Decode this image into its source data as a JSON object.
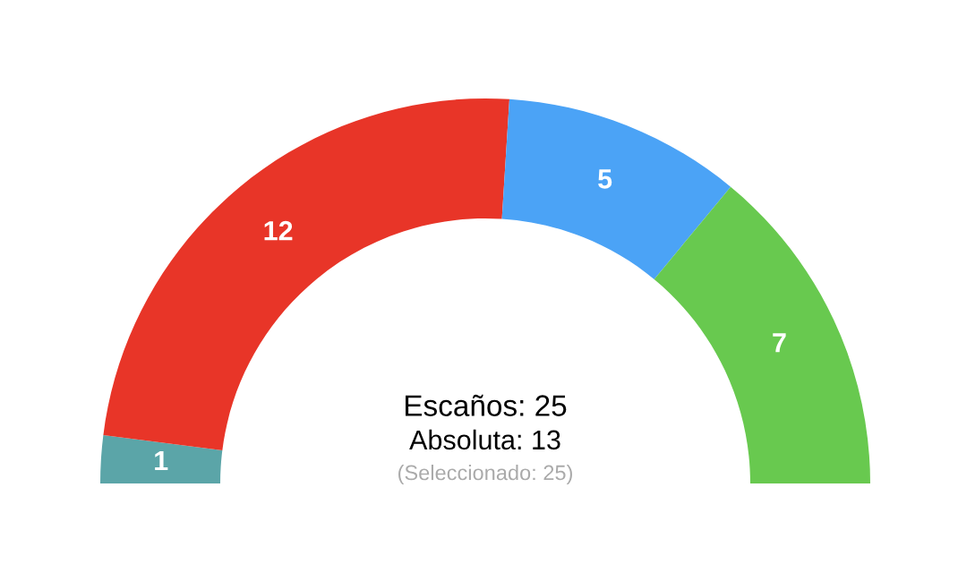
{
  "chart_data": {
    "type": "donut",
    "categories": [
      null,
      null,
      null,
      null
    ],
    "values": [
      1,
      12,
      5,
      7
    ],
    "colors": [
      "#5ba5a8",
      "#e83528",
      "#4ba3f6",
      "#68c94f"
    ],
    "data_labels": true,
    "annotations": [
      "Escaños: 25",
      "Absoluta: 13",
      "(Seleccionado: 25)"
    ]
  }
}
